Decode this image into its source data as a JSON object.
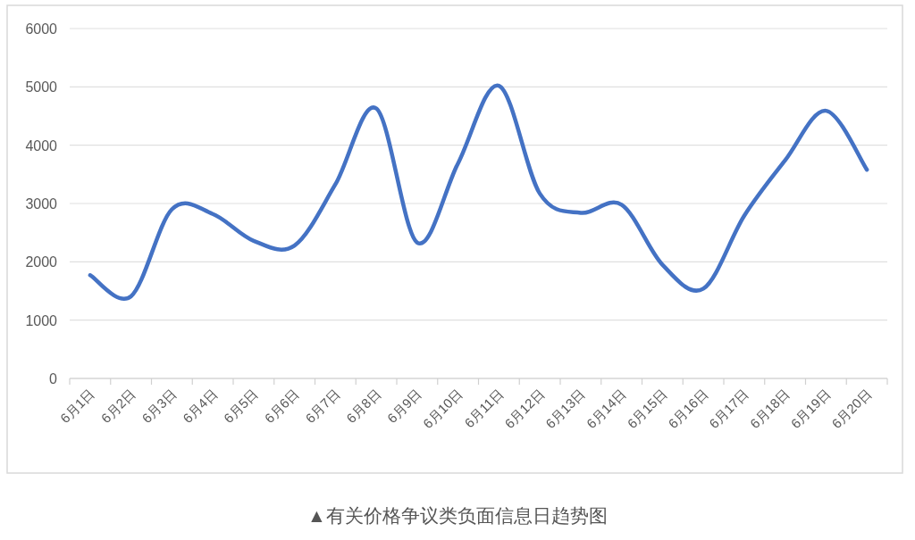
{
  "chart_data": {
    "type": "line",
    "categories": [
      "6月1日",
      "6月2日",
      "6月3日",
      "6月4日",
      "6月5日",
      "6月6日",
      "6月7日",
      "6月8日",
      "6月9日",
      "6月10日",
      "6月11日",
      "6月12日",
      "6月13日",
      "6月14日",
      "6月15日",
      "6月16日",
      "6月17日",
      "6月18日",
      "6月19日",
      "6月20日"
    ],
    "series": [
      {
        "color": "#4472c4",
        "values": [
          1770,
          1410,
          2900,
          2820,
          2360,
          2280,
          3330,
          4630,
          2330,
          3690,
          5020,
          3170,
          2840,
          2980,
          1950,
          1540,
          2790,
          3740,
          4590,
          3580
        ]
      }
    ],
    "ylim": [
      0,
      6000
    ],
    "yticks": [
      0,
      1000,
      2000,
      3000,
      4000,
      5000,
      6000
    ],
    "grid": "y",
    "marker": "none",
    "line_style": "solid",
    "annotations": [
      "▲有关价格争议类负面信息日趋势图"
    ]
  }
}
